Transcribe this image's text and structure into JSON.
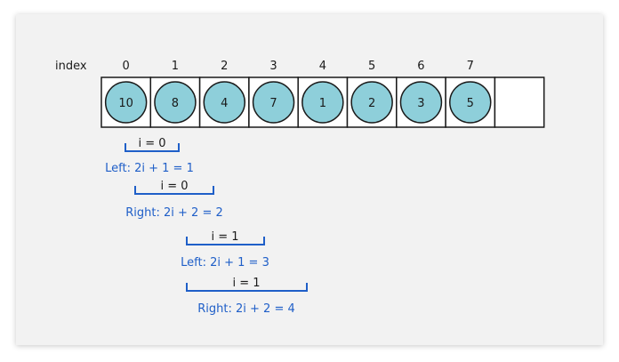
{
  "index_label": "index",
  "array": {
    "indices": [
      "0",
      "1",
      "2",
      "3",
      "4",
      "5",
      "6",
      "7"
    ],
    "values": [
      "10",
      "8",
      "4",
      "7",
      "1",
      "2",
      "3",
      "5"
    ],
    "node_color": "#8ecfda",
    "node_border": "#1a1a1a"
  },
  "annotations": [
    {
      "bracket_label": "i = 0",
      "formula": "Left: 2i + 1 = 1"
    },
    {
      "bracket_label": "i = 0",
      "formula": "Right: 2i + 2 = 2"
    },
    {
      "bracket_label": "i = 1",
      "formula": "Left: 2i + 1 = 3"
    },
    {
      "bracket_label": "i = 1",
      "formula": "Right: 2i + 2 = 4"
    }
  ],
  "colors": {
    "formula": "#1f5fc8",
    "card": "#f2f2f2"
  }
}
